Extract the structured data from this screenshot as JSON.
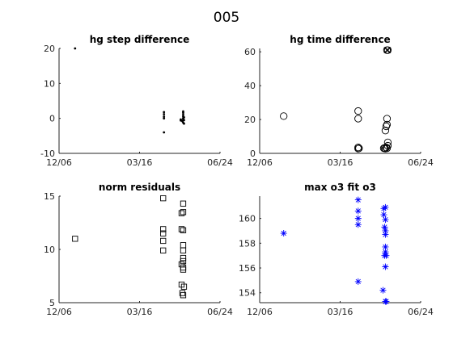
{
  "figure_title": "005",
  "chart_data": [
    {
      "type": "scatter",
      "title": "hg step difference",
      "marker": "dot",
      "color": "#000000",
      "xlim": [
        "2019-12-06",
        "2020-06-24"
      ],
      "xticks": [
        "12/06",
        "03/16",
        "06/24"
      ],
      "ylim": [
        -10,
        20
      ],
      "yticks": [
        "-10",
        "0",
        "10",
        "20"
      ],
      "points": [
        {
          "x": "2019-12-26",
          "y": 20
        },
        {
          "x": "2020-04-15",
          "y": -4
        },
        {
          "x": "2020-04-15",
          "y": 0
        },
        {
          "x": "2020-04-15",
          "y": 0.5
        },
        {
          "x": "2020-04-15",
          "y": 1.2
        },
        {
          "x": "2020-04-15",
          "y": 1.8
        },
        {
          "x": "2020-05-06",
          "y": -0.3
        },
        {
          "x": "2020-05-06",
          "y": -0.6
        },
        {
          "x": "2020-05-08",
          "y": -0.8
        },
        {
          "x": "2020-05-09",
          "y": -1.2
        },
        {
          "x": "2020-05-09",
          "y": -0.4
        },
        {
          "x": "2020-05-09",
          "y": 0
        },
        {
          "x": "2020-05-09",
          "y": 0.5
        },
        {
          "x": "2020-05-09",
          "y": 1.0
        },
        {
          "x": "2020-05-09",
          "y": 1.6
        },
        {
          "x": "2020-05-09",
          "y": 2.0
        },
        {
          "x": "2020-05-10",
          "y": -1.5
        },
        {
          "x": "2020-05-10",
          "y": -0.5
        },
        {
          "x": "2020-05-10",
          "y": 0.3
        }
      ]
    },
    {
      "type": "scatter",
      "title": "hg time difference",
      "marker": "circle",
      "color": "#000000",
      "xlim": [
        "2019-12-06",
        "2020-06-24"
      ],
      "xticks": [
        "12/06",
        "03/16",
        "06/24"
      ],
      "ylim": [
        0,
        62
      ],
      "yticks": [
        "0",
        "20",
        "40",
        "60"
      ],
      "points": [
        {
          "x": "2020-01-05",
          "y": 22
        },
        {
          "x": "2020-04-07",
          "y": 25
        },
        {
          "x": "2020-04-07",
          "y": 20.5
        },
        {
          "x": "2020-04-07",
          "y": 3.5
        },
        {
          "x": "2020-04-08",
          "y": 3
        },
        {
          "x": "2020-04-07",
          "y": 2.8
        },
        {
          "x": "2020-05-09",
          "y": 3
        },
        {
          "x": "2020-05-10",
          "y": 3.2
        },
        {
          "x": "2020-05-11",
          "y": 2.8
        },
        {
          "x": "2020-05-12",
          "y": 3.5
        },
        {
          "x": "2020-05-13",
          "y": 3
        },
        {
          "x": "2020-05-14",
          "y": 4.5
        },
        {
          "x": "2020-05-14",
          "y": 6.5
        },
        {
          "x": "2020-05-11",
          "y": 13.5
        },
        {
          "x": "2020-05-12",
          "y": 16
        },
        {
          "x": "2020-05-13",
          "y": 17
        },
        {
          "x": "2020-05-13",
          "y": 20.5
        },
        {
          "x": "2020-05-13",
          "y": 61
        },
        {
          "x": "2020-05-14",
          "y": 61
        }
      ],
      "overlay_x_points": [
        {
          "x": "2020-05-13",
          "y": 61
        },
        {
          "x": "2020-05-14",
          "y": 61
        }
      ]
    },
    {
      "type": "scatter",
      "title": "norm residuals",
      "marker": "square",
      "color": "#000000",
      "xlim": [
        "2019-12-06",
        "2020-06-24"
      ],
      "xticks": [
        "12/06",
        "03/16",
        "06/24"
      ],
      "ylim": [
        5,
        15
      ],
      "yticks": [
        "5",
        "10",
        "15"
      ],
      "points": [
        {
          "x": "2019-12-26",
          "y": 11
        },
        {
          "x": "2020-04-14",
          "y": 14.8
        },
        {
          "x": "2020-04-14",
          "y": 11.9
        },
        {
          "x": "2020-04-14",
          "y": 11.5
        },
        {
          "x": "2020-04-14",
          "y": 10.8
        },
        {
          "x": "2020-04-14",
          "y": 9.9
        },
        {
          "x": "2020-05-07",
          "y": 13.4
        },
        {
          "x": "2020-05-07",
          "y": 11.9
        },
        {
          "x": "2020-05-07",
          "y": 8.6
        },
        {
          "x": "2020-05-07",
          "y": 6.7
        },
        {
          "x": "2020-05-08",
          "y": 5.9
        },
        {
          "x": "2020-05-09",
          "y": 14.3
        },
        {
          "x": "2020-05-09",
          "y": 13.5
        },
        {
          "x": "2020-05-09",
          "y": 11.8
        },
        {
          "x": "2020-05-09",
          "y": 10.4
        },
        {
          "x": "2020-05-09",
          "y": 9.9
        },
        {
          "x": "2020-05-09",
          "y": 9.2
        },
        {
          "x": "2020-05-09",
          "y": 8.9
        },
        {
          "x": "2020-05-09",
          "y": 8.3
        },
        {
          "x": "2020-05-09",
          "y": 8.1
        },
        {
          "x": "2020-05-10",
          "y": 6.5
        },
        {
          "x": "2020-05-09",
          "y": 5.7
        }
      ]
    },
    {
      "type": "scatter",
      "title": "max o3 fit o3",
      "marker": "asterisk",
      "color": "#0000ff",
      "xlim": [
        "2019-12-06",
        "2020-06-24"
      ],
      "xticks": [
        "12/06",
        "03/16",
        "06/24"
      ],
      "ylim": [
        153.2,
        161.8
      ],
      "yticks": [
        "154",
        "156",
        "158",
        "160"
      ],
      "points": [
        {
          "x": "2020-01-05",
          "y": 158.8
        },
        {
          "x": "2020-04-07",
          "y": 161.5
        },
        {
          "x": "2020-04-07",
          "y": 160.6
        },
        {
          "x": "2020-04-07",
          "y": 160.0
        },
        {
          "x": "2020-04-07",
          "y": 159.5
        },
        {
          "x": "2020-04-07",
          "y": 154.9
        },
        {
          "x": "2020-05-08",
          "y": 154.2
        },
        {
          "x": "2020-05-09",
          "y": 160.8
        },
        {
          "x": "2020-05-09",
          "y": 160.3
        },
        {
          "x": "2020-05-11",
          "y": 160.9
        },
        {
          "x": "2020-05-11",
          "y": 159.9
        },
        {
          "x": "2020-05-10",
          "y": 159.3
        },
        {
          "x": "2020-05-11",
          "y": 159.0
        },
        {
          "x": "2020-05-11",
          "y": 158.7
        },
        {
          "x": "2020-05-11",
          "y": 157.7
        },
        {
          "x": "2020-05-11",
          "y": 157.3
        },
        {
          "x": "2020-05-10",
          "y": 157.0
        },
        {
          "x": "2020-05-12",
          "y": 157.0
        },
        {
          "x": "2020-05-11",
          "y": 156.1
        },
        {
          "x": "2020-05-11",
          "y": 153.3
        },
        {
          "x": "2020-05-12",
          "y": 153.3
        }
      ]
    }
  ]
}
